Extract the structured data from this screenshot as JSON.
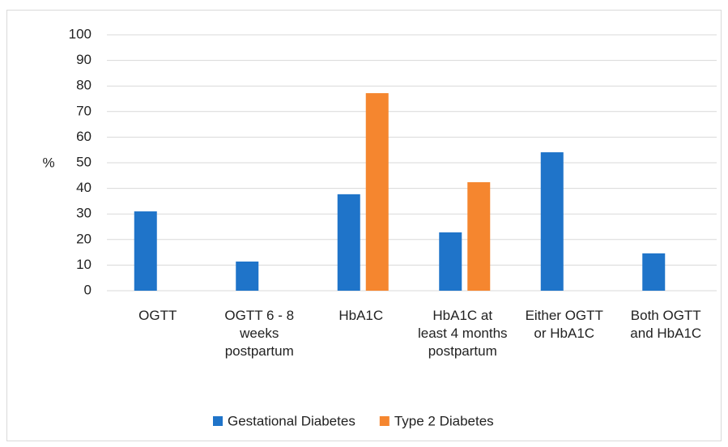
{
  "chart_data": {
    "type": "bar",
    "y_label": "%",
    "categories": [
      "OGTT",
      "OGTT 6 - 8 weeks postpartum",
      "HbA1C",
      "HbA1C at least 4 months postpartum",
      "Either OGTT or HbA1C",
      "Both OGTT and HbA1C"
    ],
    "series": [
      {
        "name": "Gestational Diabetes",
        "color": "#1f74c9",
        "values": [
          31,
          11.4,
          37.7,
          22.8,
          54.1,
          14.6
        ]
      },
      {
        "name": "Type 2 Diabetes",
        "color": "#f5862f",
        "values": [
          null,
          null,
          77.2,
          42.4,
          null,
          null
        ]
      }
    ],
    "ylim": [
      0,
      100
    ],
    "yticks": [
      0,
      10,
      20,
      30,
      40,
      50,
      60,
      70,
      80,
      90,
      100
    ],
    "grid": true,
    "legend": "bottom"
  }
}
